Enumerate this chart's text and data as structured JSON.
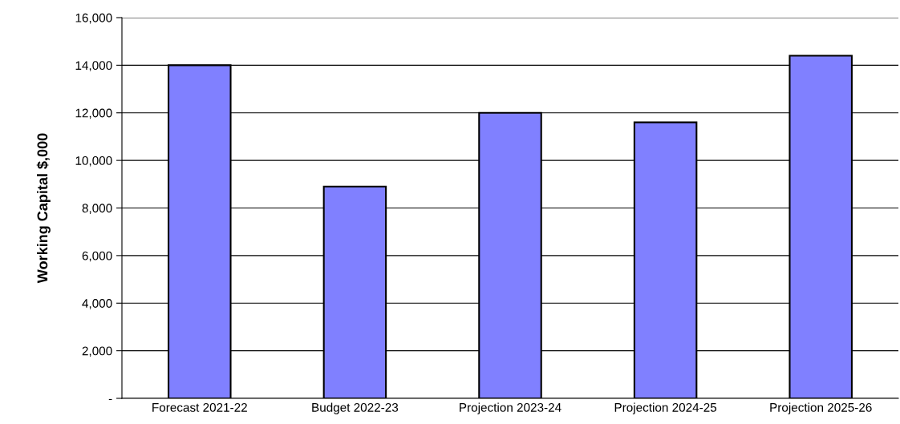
{
  "chart_data": {
    "type": "bar",
    "ylabel": "Working Capital $,000",
    "categories": [
      "Forecast 2021-22",
      "Budget 2022-23",
      "Projection 2023-24",
      "Projection 2024-25",
      "Projection 2025-26"
    ],
    "values": [
      14000,
      8900,
      12000,
      11600,
      14400
    ],
    "color": "#8080ff",
    "ylim": [
      0,
      16000
    ],
    "yticks": [
      {
        "value": 0,
        "label": "-"
      },
      {
        "value": 2000,
        "label": "2,000"
      },
      {
        "value": 4000,
        "label": "4,000"
      },
      {
        "value": 6000,
        "label": "6,000"
      },
      {
        "value": 8000,
        "label": "8,000"
      },
      {
        "value": 10000,
        "label": "10,000"
      },
      {
        "value": 12000,
        "label": "12,000"
      },
      {
        "value": 14000,
        "label": "14,000"
      },
      {
        "value": 16000,
        "label": "16,000"
      }
    ],
    "grid": "y"
  }
}
